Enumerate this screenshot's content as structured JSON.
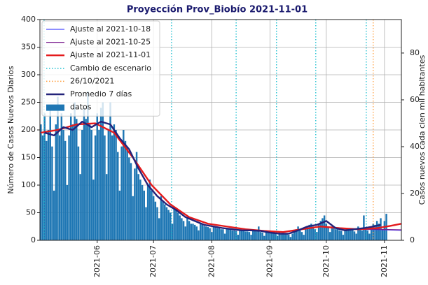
{
  "chart_data": {
    "type": "bar",
    "title": "Proyección Prov_Biobío 2021-11-01",
    "ylabel": "Número de Casos Nuevos Diarios",
    "y2label": "Casos nuevos cada cien mil habitantes",
    "xlim": [
      0.5,
      193
    ],
    "xticks": [
      {
        "value": 31,
        "label": "2021-06"
      },
      {
        "value": 61,
        "label": "2021-07"
      },
      {
        "value": 92,
        "label": "2021-08"
      },
      {
        "value": 123,
        "label": "2021-09"
      },
      {
        "value": 153,
        "label": "2021-10"
      },
      {
        "value": 184,
        "label": "2021-11"
      }
    ],
    "ylim": [
      0,
      400
    ],
    "yticks": [
      0,
      50,
      100,
      150,
      200,
      250,
      300,
      350,
      400
    ],
    "y2lim": [
      0,
      94.3
    ],
    "y2ticks": [
      0,
      20,
      40,
      60,
      80
    ],
    "grid": true,
    "legend": "upper left",
    "series": [
      {
        "name": "Ajuste al 2021-10-18",
        "type": "line",
        "color": "#4a4aff",
        "x": [
          1,
          10,
          20,
          30,
          40,
          50,
          60,
          70,
          80,
          90,
          100,
          110,
          120,
          130,
          140,
          150,
          160,
          170,
          184,
          193
        ],
        "values": [
          195,
          200,
          210,
          212,
          195,
          150,
          100,
          65,
          42,
          30,
          25,
          20,
          17,
          15,
          20,
          25,
          22,
          20,
          19,
          18
        ]
      },
      {
        "name": "Ajuste al 2021-10-25",
        "type": "line",
        "color": "#7b1f8f",
        "x": [
          1,
          10,
          20,
          30,
          40,
          50,
          60,
          70,
          80,
          90,
          100,
          110,
          120,
          130,
          140,
          150,
          160,
          170,
          177,
          193
        ],
        "values": [
          195,
          200,
          210,
          212,
          195,
          150,
          100,
          65,
          42,
          30,
          25,
          20,
          17,
          15,
          20,
          25,
          22,
          20,
          20,
          19
        ]
      },
      {
        "name": "Ajuste al 2021-11-01",
        "type": "line",
        "color": "#e41a1c",
        "width": 2.4,
        "x": [
          1,
          10,
          20,
          30,
          40,
          50,
          60,
          70,
          80,
          90,
          100,
          110,
          120,
          130,
          140,
          150,
          160,
          170,
          180,
          187,
          193
        ],
        "values": [
          195,
          200,
          210,
          212,
          195,
          150,
          100,
          65,
          42,
          30,
          25,
          20,
          17,
          15,
          20,
          25,
          22,
          20,
          22,
          26,
          30
        ]
      },
      {
        "name": "Cambio de escenario",
        "type": "vline",
        "color": "#17becf",
        "x": [
          2.7,
          70.6,
          105,
          126.5,
          147.4,
          174.3
        ]
      },
      {
        "name": "26/10/2021",
        "type": "vline",
        "color": "#ff9f3f",
        "x": [
          178
        ]
      },
      {
        "name": "Promedio 7 días",
        "type": "line",
        "color": "#23237a",
        "width": 2.4,
        "x": [
          3,
          8,
          13,
          18,
          23,
          28,
          33,
          38,
          43,
          48,
          53,
          58,
          63,
          68,
          73,
          78,
          83,
          88,
          93,
          98,
          103,
          108,
          113,
          118,
          123,
          128,
          133,
          138,
          143,
          148,
          153,
          158,
          163,
          168,
          173,
          178,
          182
        ],
        "values": [
          195,
          190,
          205,
          200,
          215,
          205,
          215,
          210,
          185,
          165,
          130,
          100,
          80,
          65,
          55,
          42,
          35,
          28,
          25,
          22,
          20,
          18,
          18,
          17,
          14,
          12,
          12,
          18,
          25,
          28,
          35,
          22,
          18,
          20,
          22,
          25,
          28
        ]
      },
      {
        "name": "datos",
        "type": "bar",
        "color": "#1f77b4",
        "x": [
          1,
          2,
          3,
          4,
          5,
          6,
          7,
          8,
          9,
          10,
          11,
          12,
          13,
          14,
          15,
          16,
          17,
          18,
          19,
          20,
          21,
          22,
          23,
          24,
          25,
          26,
          27,
          28,
          29,
          30,
          31,
          32,
          33,
          34,
          35,
          36,
          37,
          38,
          39,
          40,
          41,
          42,
          43,
          44,
          45,
          46,
          47,
          48,
          49,
          50,
          51,
          52,
          53,
          54,
          55,
          56,
          57,
          58,
          59,
          60,
          61,
          62,
          63,
          64,
          65,
          66,
          67,
          68,
          69,
          70,
          71,
          72,
          73,
          74,
          75,
          76,
          77,
          78,
          79,
          80,
          81,
          82,
          83,
          84,
          85,
          86,
          87,
          88,
          89,
          90,
          91,
          92,
          93,
          94,
          95,
          96,
          97,
          98,
          99,
          100,
          101,
          102,
          103,
          104,
          105,
          106,
          107,
          108,
          109,
          110,
          111,
          112,
          113,
          114,
          115,
          116,
          117,
          118,
          119,
          120,
          121,
          122,
          123,
          124,
          125,
          126,
          127,
          128,
          129,
          130,
          131,
          132,
          133,
          134,
          135,
          136,
          137,
          138,
          139,
          140,
          141,
          142,
          143,
          144,
          145,
          146,
          147,
          148,
          149,
          150,
          151,
          152,
          153,
          154,
          155,
          156,
          157,
          158,
          159,
          160,
          161,
          162,
          163,
          164,
          165,
          166,
          167,
          168,
          169,
          170,
          171,
          172,
          173,
          174,
          175,
          176,
          177,
          178,
          179,
          180,
          181,
          182,
          183,
          184,
          185
        ],
        "values": [
          210,
          190,
          230,
          180,
          200,
          240,
          170,
          90,
          210,
          260,
          190,
          230,
          200,
          180,
          100,
          190,
          230,
          210,
          250,
          220,
          170,
          120,
          200,
          240,
          220,
          270,
          210,
          200,
          110,
          190,
          230,
          200,
          240,
          250,
          190,
          120,
          200,
          250,
          190,
          210,
          200,
          160,
          90,
          170,
          200,
          180,
          170,
          150,
          140,
          80,
          130,
          160,
          120,
          110,
          100,
          90,
          60,
          100,
          110,
          90,
          80,
          70,
          60,
          40,
          80,
          70,
          65,
          60,
          55,
          50,
          30,
          60,
          55,
          50,
          45,
          40,
          35,
          25,
          40,
          35,
          30,
          30,
          28,
          25,
          18,
          30,
          28,
          26,
          25,
          24,
          22,
          15,
          25,
          24,
          22,
          22,
          20,
          20,
          12,
          22,
          20,
          20,
          18,
          18,
          17,
          10,
          20,
          18,
          17,
          16,
          16,
          15,
          10,
          18,
          17,
          16,
          25,
          15,
          14,
          8,
          16,
          15,
          14,
          14,
          13,
          12,
          8,
          14,
          13,
          12,
          12,
          11,
          10,
          6,
          12,
          15,
          20,
          25,
          18,
          15,
          10,
          22,
          25,
          28,
          30,
          25,
          20,
          15,
          30,
          35,
          40,
          45,
          30,
          25,
          15,
          25,
          22,
          20,
          20,
          18,
          17,
          10,
          20,
          22,
          18,
          18,
          20,
          16,
          12,
          25,
          20,
          18,
          45,
          20,
          18,
          12,
          25,
          30,
          28,
          35,
          30,
          40,
          20,
          35,
          48
        ]
      }
    ]
  }
}
